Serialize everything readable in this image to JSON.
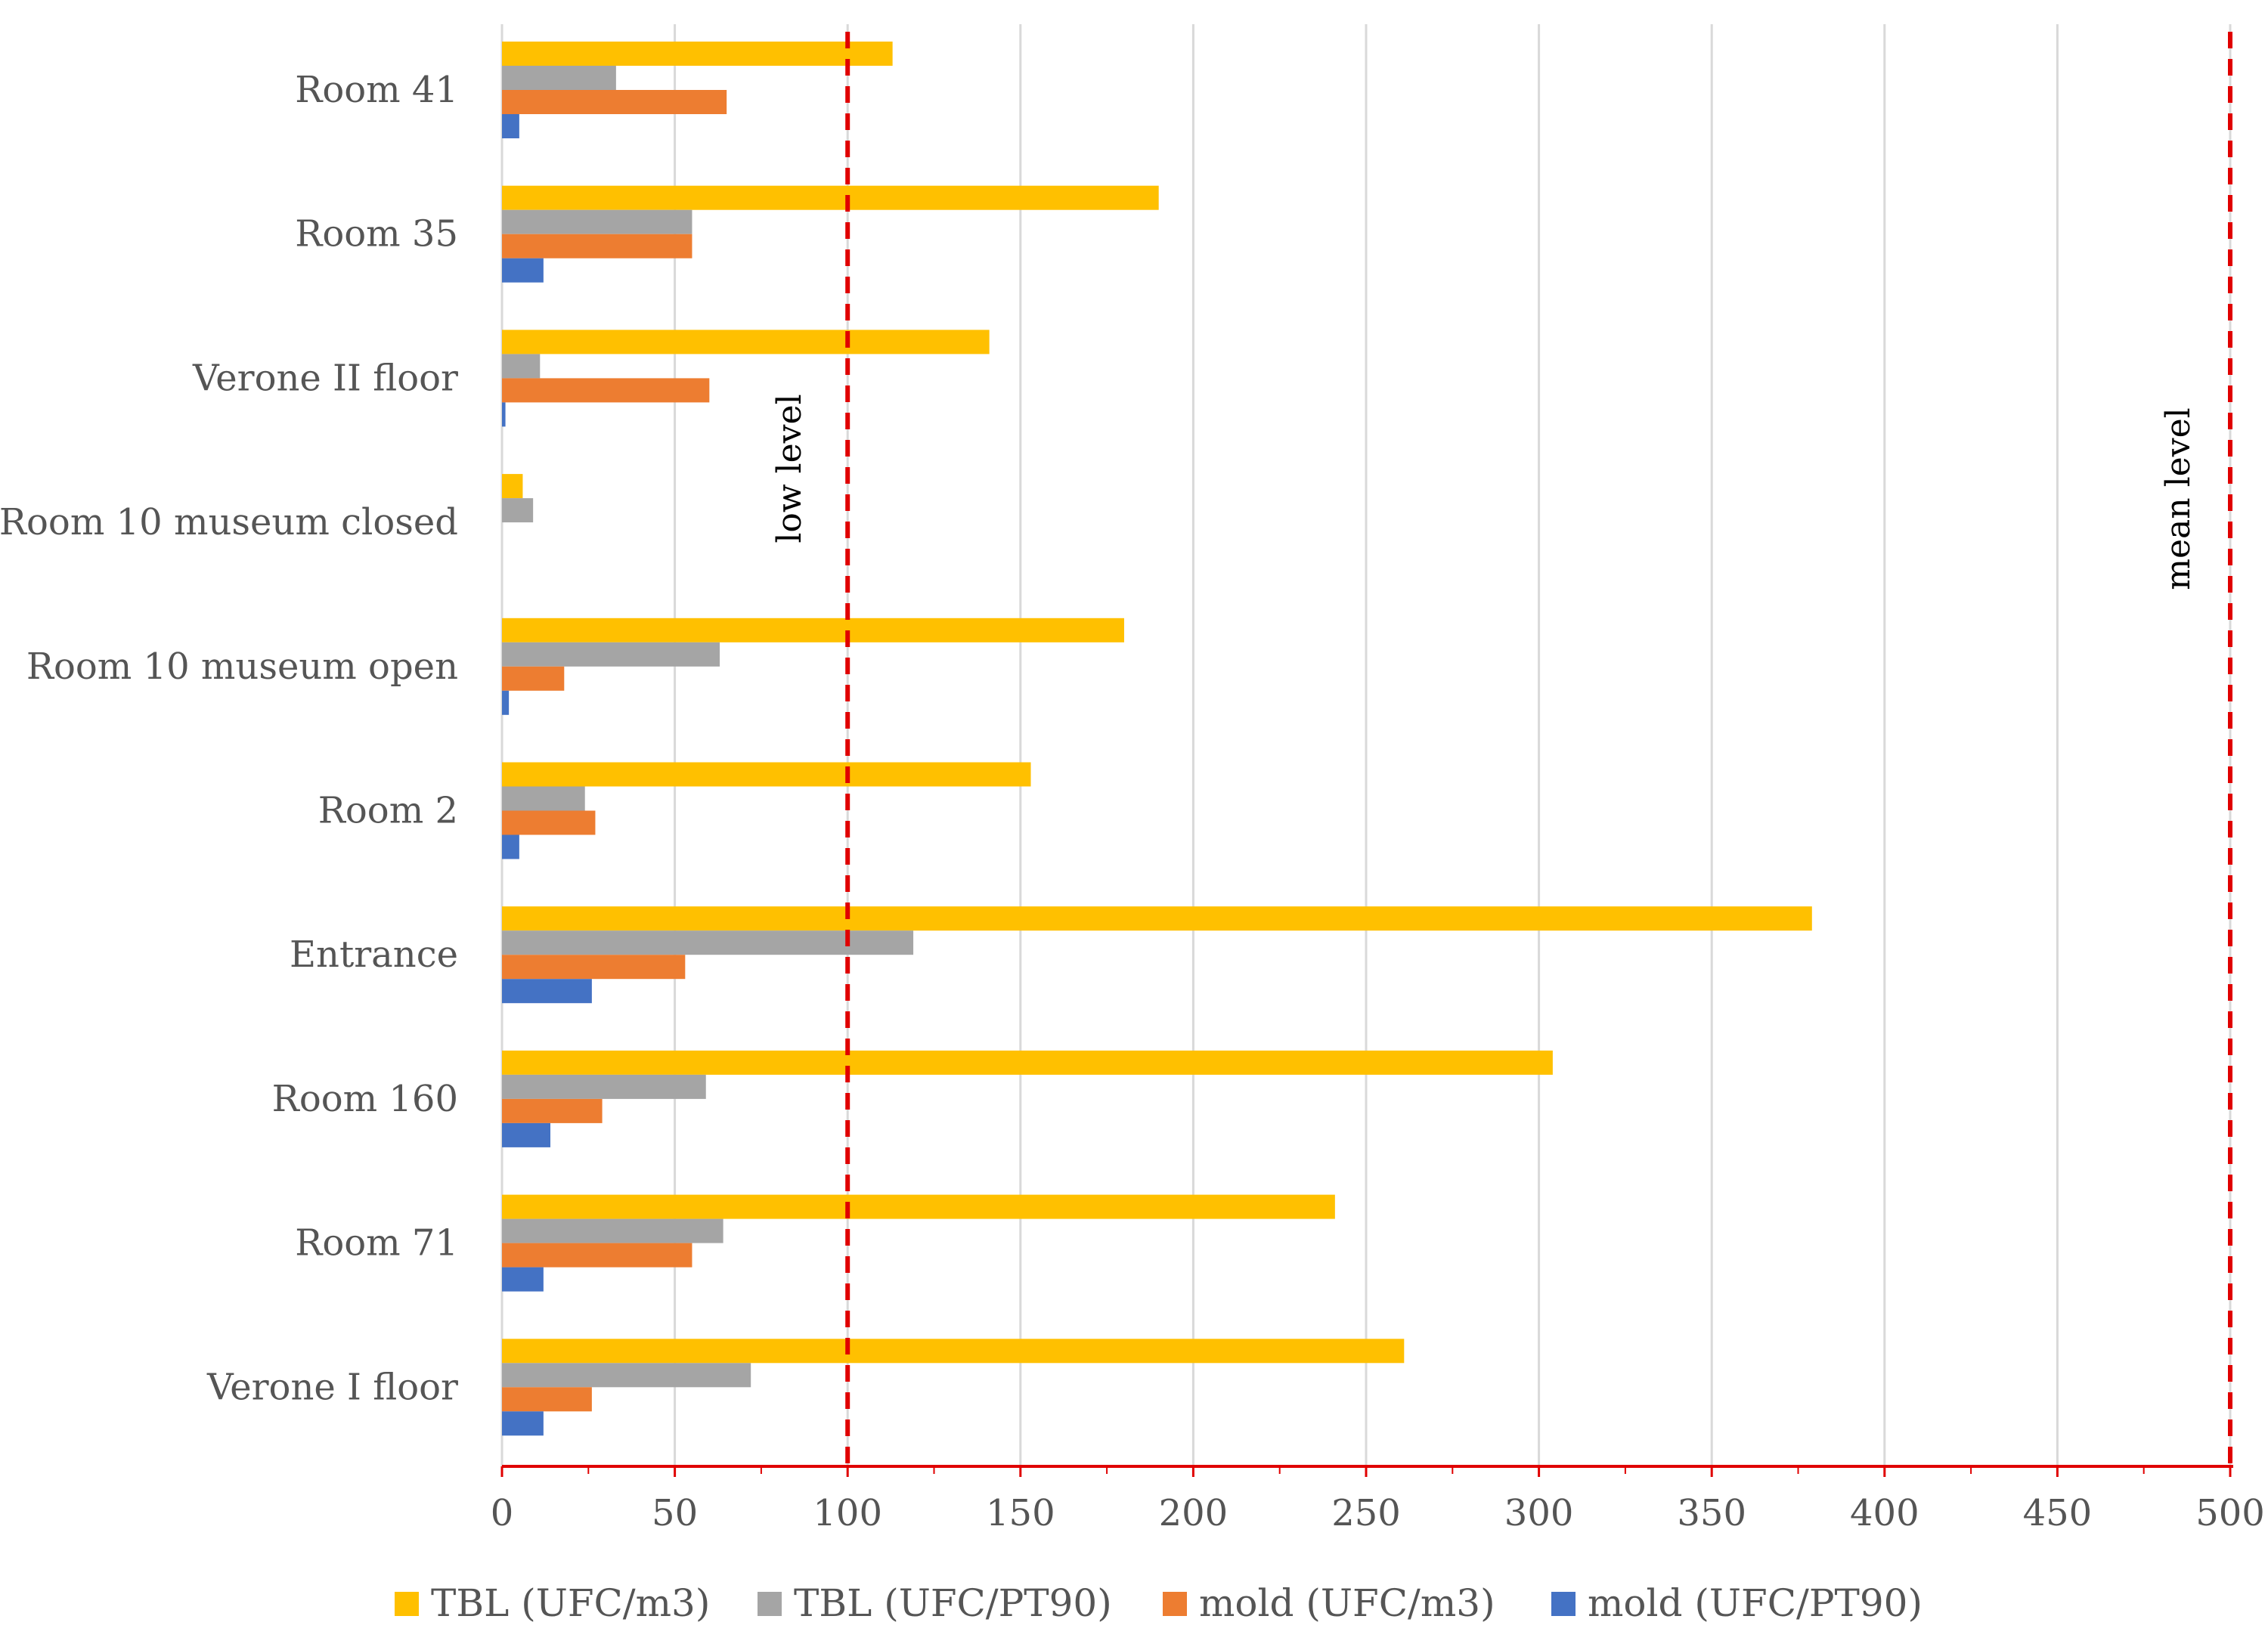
{
  "chart_data": {
    "type": "bar",
    "orientation": "horizontal",
    "title": "",
    "xlabel": "",
    "ylabel": "",
    "xlim": [
      0,
      500
    ],
    "x_ticks": [
      "0",
      "50",
      "100",
      "150",
      "200",
      "250",
      "300",
      "350",
      "400",
      "450",
      "500"
    ],
    "grid": true,
    "legend_position": "bottom",
    "categories": [
      "Room 41",
      "Room 35",
      "Verone II floor",
      "Room 10 museum closed",
      "Room 10 museum open",
      "Room 2",
      "Entrance",
      "Room 160",
      "Room 71",
      "Verone I floor"
    ],
    "series": [
      {
        "name": "TBL (UFC/m3)",
        "color": "#FFC000",
        "values": [
          113,
          190,
          141,
          6,
          180,
          153,
          379,
          304,
          241,
          261
        ]
      },
      {
        "name": "TBL (UFC/PT90)",
        "color": "#A5A5A5",
        "values": [
          33,
          55,
          11,
          9,
          63,
          24,
          119,
          59,
          64,
          72
        ]
      },
      {
        "name": "mold (UFC/m3)",
        "color": "#ED7D31",
        "values": [
          65,
          55,
          60,
          0,
          18,
          27,
          53,
          29,
          55,
          26
        ]
      },
      {
        "name": "mold (UFC/PT90)",
        "color": "#4472C4",
        "values": [
          5,
          12,
          1,
          0,
          2,
          5,
          26,
          14,
          12,
          12
        ]
      }
    ],
    "reference_lines": [
      {
        "label": "low level",
        "value": 100,
        "color": "#E00000"
      },
      {
        "label": "mean level",
        "value": 500,
        "color": "#E00000"
      }
    ]
  }
}
